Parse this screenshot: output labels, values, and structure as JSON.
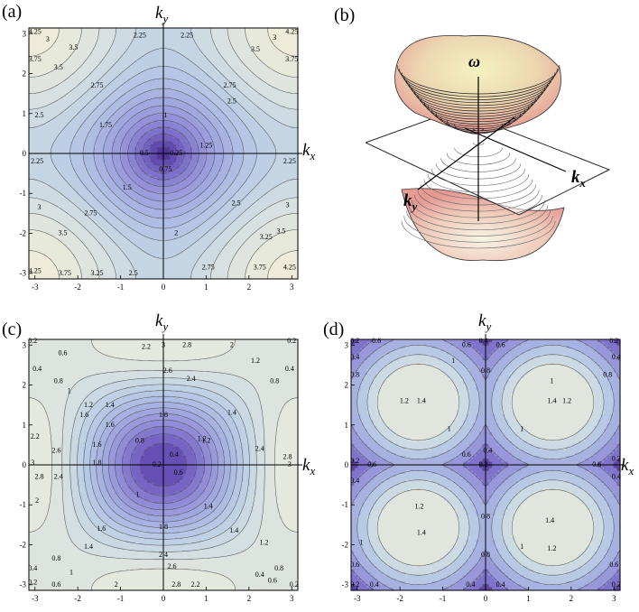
{
  "panels": {
    "a": {
      "letter": "(a)",
      "kx_label": "k",
      "kx_sub": "x",
      "ky_label": "k",
      "ky_sub": "y",
      "ticks": [
        "-3",
        "-2",
        "-1",
        "0",
        "1",
        "2",
        "3"
      ],
      "contour_labels": [
        "4.25",
        "3.5",
        "3",
        "2.25",
        "2.25",
        "3",
        "3.5",
        "4.25",
        "3.75",
        "3.5",
        "2.75",
        "2.75",
        "3.75",
        "2.5",
        "2.5",
        "1.75",
        "1",
        "1.25",
        "0.5",
        "0.25",
        "0.75",
        "2.25",
        "2.25",
        "1.5",
        "3",
        "2.75",
        "2.5",
        "3",
        "3.5",
        "2",
        "3.25",
        "3.5",
        "4.25",
        "3.75",
        "3.25",
        "2.5",
        "2.75",
        "3.75",
        "4.25"
      ]
    },
    "b": {
      "letter": "(b)",
      "omega_label": "ω",
      "kx_label": "k",
      "kx_sub": "x",
      "ky_label": "k",
      "ky_sub": "y"
    },
    "c": {
      "letter": "(c)",
      "kx_label": "k",
      "kx_sub": "x",
      "ky_label": "k",
      "ky_sub": "y",
      "ticks": [
        "-3",
        "-2",
        "-1",
        "0",
        "1",
        "2",
        "3"
      ],
      "contour_labels": [
        "0.2",
        "0.6",
        "2.2",
        "3",
        "2.8",
        "2",
        "1.6",
        "0.2",
        "0.4",
        "0.8",
        "2.6",
        "2.4",
        "1.2",
        "0.4",
        "0.8",
        "1",
        "1.2",
        "1.4",
        "1.6",
        "1.8",
        "1.4",
        "1.2",
        "2.2",
        "1.6",
        "0.8",
        "1.2",
        "2.4",
        "2.6",
        "0.4",
        "2.8",
        "3",
        "1.8",
        "0.2",
        "0.6",
        "3",
        "2.8",
        "2.4",
        "1",
        "2",
        "1.4",
        "1.6",
        "1.8",
        "1.4",
        "1.2",
        "0.8",
        "1.4",
        "2.4",
        "1",
        "0.4",
        "0.2",
        "0.6",
        "2.6",
        "0.6",
        "0.4",
        "2.8",
        "2.2",
        "0.2",
        "0.8",
        "2"
      ]
    },
    "d": {
      "letter": "(d)",
      "kx_label": "k",
      "kx_sub": "x",
      "ky_label": "k",
      "ky_sub": "y",
      "ticks": [
        "-3",
        "-2",
        "-1",
        "0",
        "1",
        "2",
        "3"
      ],
      "contour_labels": [
        "0.2",
        "0.6",
        "0.4",
        "0.6",
        "0.6",
        "0.2",
        "0.4",
        "0.8",
        "0.4",
        "1",
        "0.8",
        "1",
        "0.8",
        "1.2",
        "1.4",
        "1.2",
        "1.4",
        "1",
        "1",
        "0.2",
        "0.6",
        "0.6",
        "0.4",
        "0.6",
        "0.2",
        "0.4",
        "0.2",
        "0.4",
        "1.2",
        "0.8",
        "1",
        "1.4",
        "1",
        "1.4",
        "1.2",
        "0.6",
        "0.8",
        "0.6",
        "0.2",
        "0.4",
        "0.4",
        "0.4",
        "0.2"
      ]
    }
  }
}
